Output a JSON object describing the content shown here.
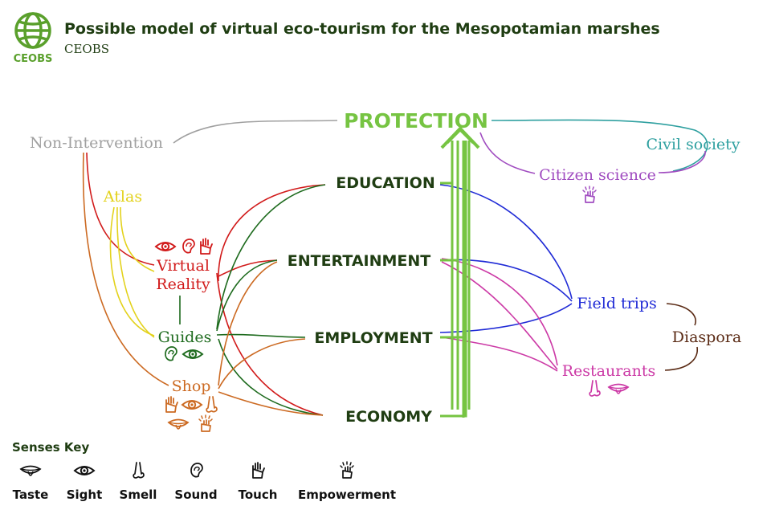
{
  "header": {
    "title": "Possible model of virtual eco-tourism for the Mesopotamian marshes",
    "subtitle": "CEOBS",
    "logo_text": "CEOBS"
  },
  "colors": {
    "title": "#1f3d12",
    "logo": "#5aa02c",
    "protection": "#76c442",
    "grey": "#a0a0a0",
    "teal": "#2fa0a0",
    "purple": "#a04cc0",
    "red": "#d11a1a",
    "yellow": "#e3d21c",
    "green": "#1e6b1e",
    "orange": "#cc6a22",
    "blue": "#1f2ad6",
    "magenta": "#cc3aa6",
    "brown": "#5a2a14",
    "dark": "#1f3d12"
  },
  "nodes": {
    "protection": "PROTECTION",
    "non_intervention": "Non-Intervention",
    "civil_society": "Civil society",
    "citizen_science": "Citizen science",
    "atlas": "Atlas",
    "education": "EDUCATION",
    "entertainment": "ENTERTAINMENT",
    "employment": "EMPLOYMENT",
    "economy": "ECONOMY",
    "virtual_reality_line1": "Virtual",
    "virtual_reality_line2": "Reality",
    "guides": "Guides",
    "shop": "Shop",
    "field_trips": "Field trips",
    "restaurants": "Restaurants",
    "diaspora": "Diaspora"
  },
  "senses_key": {
    "title": "Senses Key",
    "items": [
      {
        "label": "Taste",
        "icon": "taste-icon"
      },
      {
        "label": "Sight",
        "icon": "sight-icon"
      },
      {
        "label": "Smell",
        "icon": "smell-icon"
      },
      {
        "label": "Sound",
        "icon": "sound-icon"
      },
      {
        "label": "Touch",
        "icon": "touch-icon"
      },
      {
        "label": "Empowerment",
        "icon": "empowerment-icon"
      }
    ]
  }
}
